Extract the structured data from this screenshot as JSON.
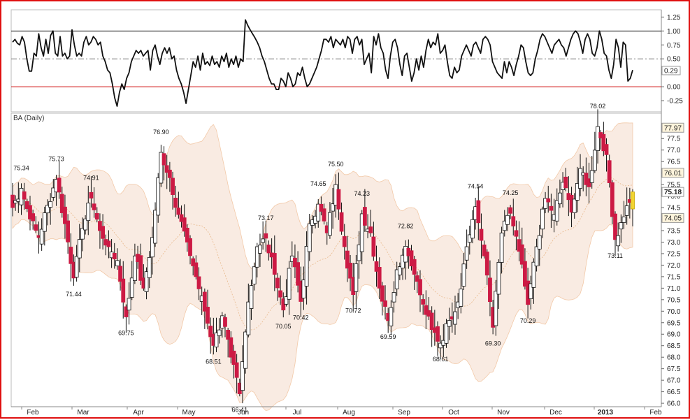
{
  "colors": {
    "border": "#e01010",
    "band_fill": "#f9ebe2",
    "band_line": "#f2c9a8",
    "down_candle": "#cc1a44",
    "up_candle": "#ffffff",
    "last_highlight": "#f2d431",
    "indicator_line": "#111111"
  },
  "chart_data": [
    {
      "type": "line",
      "title": "",
      "ylim": [
        -0.45,
        1.38
      ],
      "y_ticks": [
        "1.25",
        "1.00",
        "0.75",
        "0.50",
        "0.25",
        "0.00",
        "-0.25"
      ],
      "reference_lines": [
        {
          "value": 1.0,
          "style": "solid",
          "color": "#111111"
        },
        {
          "value": 0.5,
          "style": "dash-dot",
          "color": "#777777"
        },
        {
          "value": 0.0,
          "style": "solid",
          "color": "#d01010"
        }
      ],
      "last_value_label": "0.29",
      "series": [
        {
          "values": [
            0.8,
            0.85,
            0.78,
            0.75,
            0.9,
            0.8,
            0.5,
            0.28,
            0.28,
            0.6,
            0.55,
            0.95,
            0.7,
            0.55,
            0.85,
            0.6,
            0.92,
            1.0,
            0.6,
            0.55,
            0.9,
            0.55,
            0.6,
            0.5,
            0.55,
            1.02,
            0.75,
            0.55,
            0.6,
            0.55,
            0.8,
            0.9,
            0.75,
            0.8,
            0.9,
            0.85,
            0.75,
            0.8,
            0.55,
            0.45,
            0.3,
            0.25,
            0.05,
            -0.2,
            -0.35,
            -0.1,
            0.05,
            -0.05,
            0.15,
            0.25,
            0.45,
            0.55,
            0.65,
            0.6,
            0.65,
            0.55,
            0.6,
            0.65,
            0.3,
            0.65,
            0.75,
            0.55,
            0.4,
            0.6,
            0.7,
            0.6,
            0.7,
            0.5,
            0.55,
            0.3,
            0.15,
            0.05,
            -0.1,
            -0.3,
            -0.05,
            0.2,
            0.45,
            0.35,
            0.55,
            0.3,
            0.6,
            0.4,
            0.45,
            0.38,
            0.55,
            0.4,
            0.45,
            0.35,
            0.55,
            0.45,
            0.6,
            0.35,
            0.5,
            0.4,
            0.55,
            0.35,
            0.5,
            0.45,
            1.2,
            1.1,
            1.02,
            0.95,
            0.88,
            0.8,
            0.7,
            0.55,
            0.45,
            0.3,
            0.15,
            0.05,
            0.05,
            -0.05,
            -0.05,
            0.15,
            0.1,
            0.0,
            0.25,
            0.15,
            0.0,
            0.05,
            0.25,
            0.2,
            0.35,
            0.15,
            0.0,
            0.05,
            0.15,
            0.25,
            0.35,
            0.5,
            0.65,
            0.85,
            0.85,
            0.8,
            0.9,
            0.7,
            0.85,
            0.8,
            0.75,
            0.85,
            0.7,
            0.9,
            0.85,
            0.6,
            0.85,
            0.9,
            0.75,
            0.85,
            0.4,
            0.5,
            0.6,
            0.25,
            0.9,
            0.75,
            0.95,
            0.7,
            0.6,
            0.3,
            0.15,
            0.55,
            0.8,
            0.85,
            0.7,
            0.4,
            0.2,
            0.55,
            0.6,
            0.35,
            0.1,
            0.25,
            0.5,
            0.3,
            0.55,
            0.35,
            0.65,
            0.85,
            0.7,
            0.8,
            0.75,
            0.95,
            0.6,
            0.65,
            0.75,
            0.45,
            0.2,
            0.15,
            0.35,
            0.25,
            0.3,
            0.55,
            0.65,
            0.75,
            0.65,
            0.55,
            0.75,
            0.8,
            0.7,
            0.6,
            0.85,
            0.9,
            0.85,
            0.75,
            0.45,
            0.35,
            0.25,
            0.2,
            0.15,
            0.45,
            0.25,
            0.45,
            0.35,
            0.2,
            0.4,
            0.55,
            0.75,
            0.7,
            0.45,
            0.25,
            0.2,
            0.25,
            0.5,
            0.65,
            0.85,
            0.95,
            0.9,
            0.8,
            0.7,
            0.6,
            0.75,
            0.8,
            0.85,
            0.75,
            0.7,
            0.55,
            0.7,
            0.85,
            0.95,
            1.0,
            0.95,
            0.8,
            0.6,
            0.85,
            0.95,
            0.85,
            0.6,
            0.55,
            0.7,
            1.0,
            0.85,
            0.6,
            0.55,
            0.3,
            0.15,
            0.4,
            0.85,
            0.7,
            0.35,
            0.8,
            0.75,
            0.1,
            0.15,
            0.3
          ]
        }
      ]
    },
    {
      "type": "candlestick",
      "title": "BA (Daily)",
      "ylim": [
        65.85,
        78.6
      ],
      "y_ticks": [
        "77.5",
        "77.0",
        "76.5",
        "76.0",
        "75.5",
        "75.0",
        "74.5",
        "74.0",
        "73.5",
        "73.0",
        "72.5",
        "72.0",
        "71.5",
        "71.0",
        "70.5",
        "70.0",
        "69.5",
        "69.0",
        "68.5",
        "68.0",
        "67.5",
        "67.0",
        "66.5",
        "66.0"
      ],
      "categories": [
        "Feb",
        "Mar",
        "Apr",
        "May",
        "Jun",
        "Jul",
        "Aug",
        "Sep",
        "Oct",
        "Nov",
        "Dec",
        "2013",
        "Feb"
      ],
      "anchor_closes": [
        74.5,
        75.34,
        74.0,
        73.2,
        74.6,
        75.73,
        73.8,
        71.44,
        73.6,
        74.91,
        73.5,
        72.8,
        72.2,
        69.75,
        72.4,
        71.0,
        73.2,
        76.9,
        75.8,
        74.2,
        73.0,
        71.5,
        70.0,
        68.51,
        69.8,
        68.0,
        66.41,
        70.4,
        72.8,
        73.17,
        71.6,
        70.05,
        72.4,
        70.42,
        73.8,
        74.65,
        73.4,
        75.5,
        72.8,
        70.72,
        74.23,
        73.4,
        71.0,
        69.59,
        71.8,
        72.82,
        71.6,
        70.3,
        69.2,
        68.61,
        69.6,
        70.4,
        72.8,
        74.54,
        72.4,
        69.3,
        73.4,
        74.25,
        72.6,
        70.29,
        72.8,
        74.9,
        74.2,
        75.6,
        74.3,
        76.2,
        75.4,
        78.02,
        76.8,
        73.11,
        74.1,
        75.18
      ],
      "annotations": [
        {
          "label": "75.34",
          "value": 75.34,
          "pos": "above"
        },
        {
          "label": "75.73",
          "value": 75.73,
          "pos": "above"
        },
        {
          "label": "71.44",
          "value": 71.44,
          "pos": "below"
        },
        {
          "label": "74.91",
          "value": 74.91,
          "pos": "above"
        },
        {
          "label": "69.75",
          "value": 69.75,
          "pos": "below"
        },
        {
          "label": "76.90",
          "value": 76.9,
          "pos": "above"
        },
        {
          "label": "68.51",
          "value": 68.51,
          "pos": "below"
        },
        {
          "label": "66.41",
          "value": 66.41,
          "pos": "below"
        },
        {
          "label": "73.17",
          "value": 73.17,
          "pos": "above"
        },
        {
          "label": "70.05",
          "value": 70.05,
          "pos": "below"
        },
        {
          "label": "70.42",
          "value": 70.42,
          "pos": "below"
        },
        {
          "label": "74.65",
          "value": 74.65,
          "pos": "above"
        },
        {
          "label": "75.50",
          "value": 75.5,
          "pos": "above"
        },
        {
          "label": "70.72",
          "value": 70.72,
          "pos": "below"
        },
        {
          "label": "74.23",
          "value": 74.23,
          "pos": "above"
        },
        {
          "label": "69.59",
          "value": 69.59,
          "pos": "below"
        },
        {
          "label": "72.82",
          "value": 72.82,
          "pos": "above"
        },
        {
          "label": "68.61",
          "value": 68.61,
          "pos": "below"
        },
        {
          "label": "74.54",
          "value": 74.54,
          "pos": "above"
        },
        {
          "label": "69.30",
          "value": 69.3,
          "pos": "below"
        },
        {
          "label": "74.25",
          "value": 74.25,
          "pos": "above"
        },
        {
          "label": "70.29",
          "value": 70.29,
          "pos": "below"
        },
        {
          "label": "78.02",
          "value": 78.02,
          "pos": "above"
        },
        {
          "label": "73.11",
          "value": 73.11,
          "pos": "below"
        }
      ],
      "last_value": "75.18",
      "upper_band_last": "77.97",
      "middle_band_last": "76.01",
      "lower_band_last": "74.05"
    }
  ]
}
